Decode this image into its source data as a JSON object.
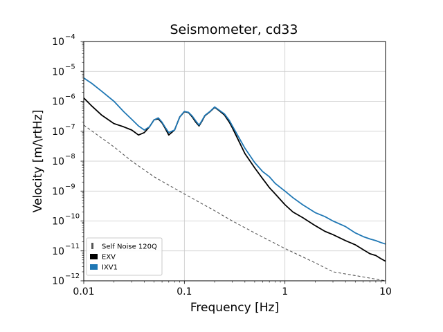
{
  "chart_data": {
    "type": "line",
    "title": "Seismometer, cd33",
    "xlabel": "Frequency [Hz]",
    "ylabel": "Velocity [m/\\rtHz]",
    "xscale": "log",
    "yscale": "log",
    "xlim": [
      0.01,
      10
    ],
    "ylim": [
      1e-12,
      0.0001
    ],
    "grid": true,
    "legend_placement": "lower-left",
    "x_ticks": [
      {
        "value": 0.01,
        "label": "0.01"
      },
      {
        "value": 0.1,
        "label": "0.1"
      },
      {
        "value": 1,
        "label": "1"
      },
      {
        "value": 10,
        "label": "10"
      }
    ],
    "y_ticks": [
      {
        "value": 1e-12,
        "base": "10",
        "exp": "−12"
      },
      {
        "value": 1e-11,
        "base": "10",
        "exp": "−11"
      },
      {
        "value": 1e-10,
        "base": "10",
        "exp": "−10"
      },
      {
        "value": 1e-09,
        "base": "10",
        "exp": "−9"
      },
      {
        "value": 1e-08,
        "base": "10",
        "exp": "−8"
      },
      {
        "value": 1e-07,
        "base": "10",
        "exp": "−7"
      },
      {
        "value": 1e-06,
        "base": "10",
        "exp": "−6"
      },
      {
        "value": 1e-05,
        "base": "10",
        "exp": "−5"
      },
      {
        "value": 0.0001,
        "base": "10",
        "exp": "−4"
      }
    ],
    "series": [
      {
        "name": "Self Noise 120Q",
        "color": "#555555",
        "style": "dashed",
        "x": [
          0.01,
          0.02,
          0.03,
          0.05,
          0.1,
          0.2,
          0.3,
          0.5,
          1,
          2,
          3,
          5,
          10
        ],
        "y": [
          1.6e-07,
          3e-08,
          1e-08,
          3e-09,
          8e-10,
          2.2e-10,
          1e-10,
          4e-11,
          1.2e-11,
          4e-12,
          2e-12,
          1.5e-12,
          1e-12
        ]
      },
      {
        "name": "EXV",
        "color": "#000000",
        "style": "solid",
        "x": [
          0.01,
          0.012,
          0.015,
          0.02,
          0.025,
          0.03,
          0.035,
          0.04,
          0.045,
          0.05,
          0.055,
          0.06,
          0.065,
          0.07,
          0.08,
          0.09,
          0.1,
          0.11,
          0.12,
          0.13,
          0.14,
          0.15,
          0.16,
          0.18,
          0.2,
          0.22,
          0.25,
          0.28,
          0.3,
          0.35,
          0.4,
          0.5,
          0.6,
          0.7,
          0.8,
          1,
          1.2,
          1.5,
          2,
          2.5,
          3,
          4,
          5,
          6,
          7,
          8,
          9,
          10
        ],
        "y": [
          1.3e-06,
          7e-07,
          3.5e-07,
          1.8e-07,
          1.4e-07,
          1.1e-07,
          7.5e-08,
          9e-08,
          1.4e-07,
          2.4e-07,
          2.6e-07,
          1.9e-07,
          1.2e-07,
          7.5e-08,
          1.1e-07,
          3e-07,
          4.5e-07,
          4.2e-07,
          3e-07,
          2e-07,
          1.5e-07,
          2.2e-07,
          3.3e-07,
          4.5e-07,
          6.3e-07,
          5e-07,
          3.5e-07,
          2e-07,
          1.3e-07,
          4.5e-08,
          1.8e-08,
          6e-09,
          2.6e-09,
          1.3e-09,
          8e-10,
          3.5e-10,
          2e-10,
          1.3e-10,
          7e-11,
          4.5e-11,
          3.5e-11,
          2.2e-11,
          1.6e-11,
          1.1e-11,
          8e-12,
          7e-12,
          5.5e-12,
          4.5e-12
        ]
      },
      {
        "name": "IXV1",
        "color": "#1f77b4",
        "style": "solid",
        "x": [
          0.01,
          0.012,
          0.015,
          0.02,
          0.025,
          0.03,
          0.035,
          0.04,
          0.045,
          0.05,
          0.055,
          0.06,
          0.065,
          0.07,
          0.08,
          0.09,
          0.1,
          0.11,
          0.12,
          0.13,
          0.14,
          0.15,
          0.16,
          0.18,
          0.2,
          0.22,
          0.25,
          0.28,
          0.3,
          0.35,
          0.4,
          0.5,
          0.6,
          0.7,
          0.8,
          1,
          1.2,
          1.5,
          2,
          2.5,
          3,
          4,
          5,
          6,
          7,
          8,
          9,
          10
        ],
        "y": [
          6e-06,
          4e-06,
          2.2e-06,
          1e-06,
          4.5e-07,
          2.5e-07,
          1.5e-07,
          1.1e-07,
          1.4e-07,
          2.4e-07,
          2.8e-07,
          2e-07,
          1.3e-07,
          9e-08,
          1.1e-07,
          3e-07,
          4.6e-07,
          4.3e-07,
          3.2e-07,
          2.2e-07,
          1.6e-07,
          2.3e-07,
          3.4e-07,
          4.6e-07,
          6.5e-07,
          5.2e-07,
          3.8e-07,
          2.3e-07,
          1.5e-07,
          6e-08,
          2.7e-08,
          9e-09,
          4.5e-09,
          3e-09,
          1.8e-09,
          1e-09,
          6e-10,
          3.5e-10,
          1.9e-10,
          1.4e-10,
          1e-10,
          6.5e-11,
          4e-11,
          3e-11,
          2.5e-11,
          2.2e-11,
          1.9e-11,
          1.7e-11
        ]
      }
    ]
  }
}
